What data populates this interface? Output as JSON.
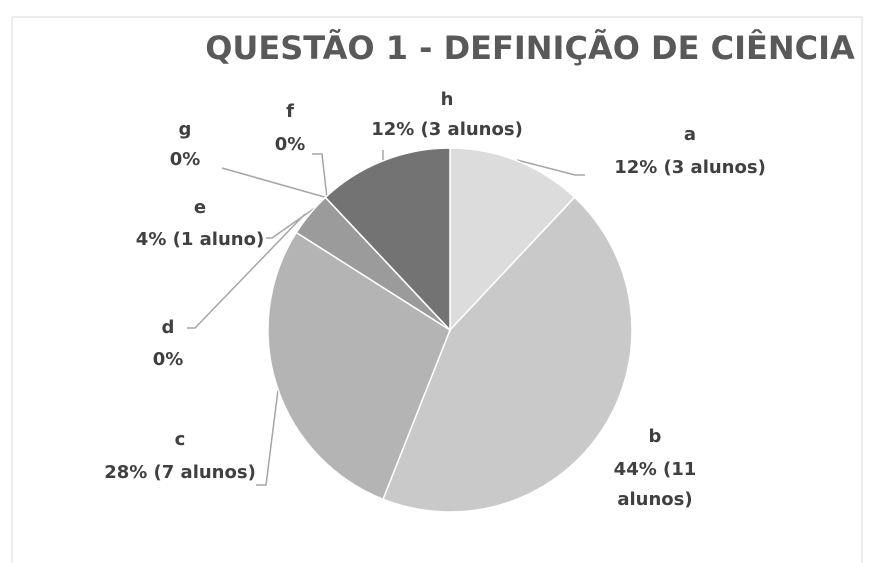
{
  "chart_data": {
    "type": "pie",
    "title": "QUESTÃO 1 - DEFINIÇÃO DE CIÊNCIA",
    "categories": [
      "a",
      "b",
      "c",
      "d",
      "e",
      "f",
      "g",
      "h"
    ],
    "values": [
      12,
      44,
      28,
      0,
      4,
      0,
      0,
      12
    ],
    "value_labels": [
      "12% (3 alunos)",
      "44% (11 alunos)",
      "28% (7 alunos)",
      "0%",
      "4% (1 aluno)",
      "0%",
      "0%",
      "12% (3 alunos)"
    ],
    "colors": [
      "#dcdcdc",
      "#c9c9c9",
      "#b4b4b4",
      "#a8a8a8",
      "#9b9b9b",
      "#888888",
      "#7f7f7f",
      "#737373"
    ]
  }
}
